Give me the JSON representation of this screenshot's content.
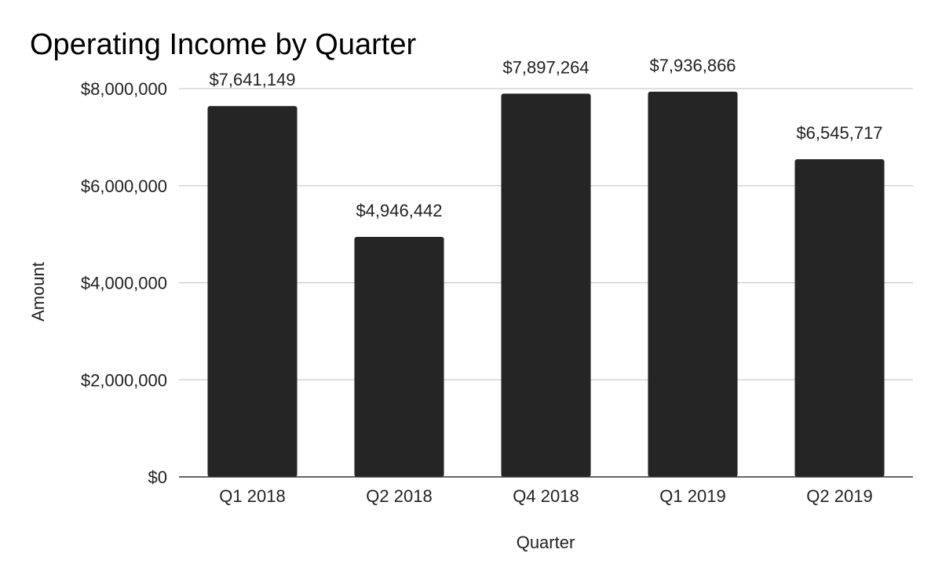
{
  "chart_data": {
    "type": "bar",
    "title": "Operating Income by Quarter",
    "xlabel": "Quarter",
    "ylabel": "Amount",
    "categories": [
      "Q1 2018",
      "Q2 2018",
      "Q4 2018",
      "Q1 2019",
      "Q2 2019"
    ],
    "values": [
      7641149,
      4946442,
      7897264,
      7936866,
      6545717
    ],
    "data_labels": [
      "$7,641,149",
      "$4,946,442",
      "$7,897,264",
      "$7,936,866",
      "$6,545,717"
    ],
    "ylim": [
      0,
      8000000
    ],
    "yticks": [
      0,
      2000000,
      4000000,
      6000000,
      8000000
    ],
    "ytick_labels": [
      "$0",
      "$2,000,000",
      "$4,000,000",
      "$6,000,000",
      "$8,000,000"
    ],
    "grid": true,
    "legend": "none",
    "colors": {
      "bar": "#252525",
      "grid": "#cccccc",
      "baseline": "#333333",
      "text": "#222222"
    }
  }
}
